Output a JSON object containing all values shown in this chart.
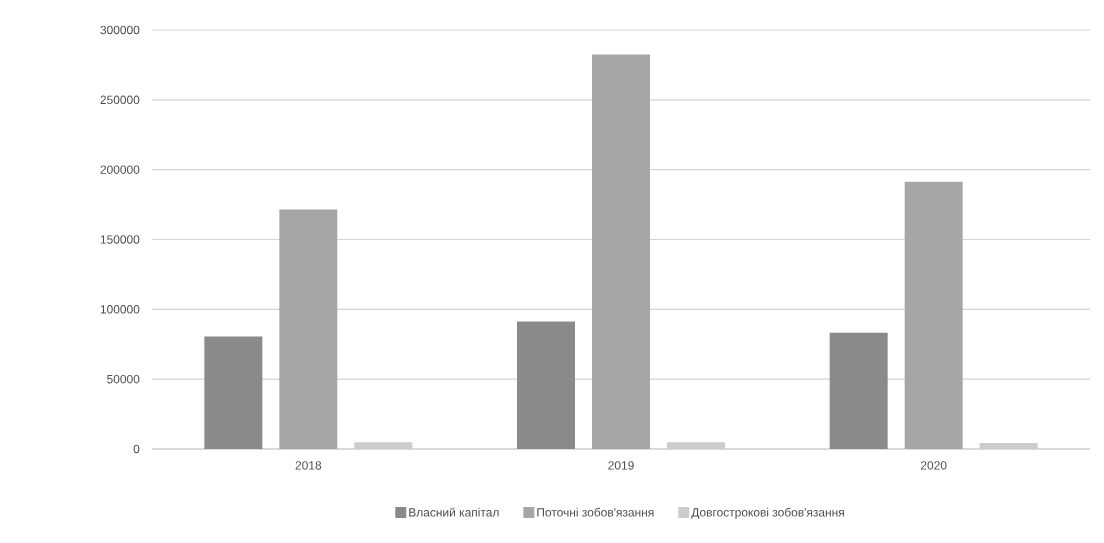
{
  "chart_data": {
    "type": "bar",
    "categories": [
      "2018",
      "2019",
      "2020"
    ],
    "series": [
      {
        "name": "Власний капітал",
        "color": "#8a8a8a",
        "values": [
          80500,
          91200,
          83300
        ]
      },
      {
        "name": "Поточні зобов'язання",
        "color": "#a6a6a6",
        "values": [
          171400,
          282400,
          191400
        ]
      },
      {
        "name": "Довгострокові зобов'язання",
        "color": "#cccccc",
        "values": [
          4900,
          4900,
          4300
        ]
      }
    ],
    "ylim": [
      0,
      300000
    ],
    "yticks": [
      0,
      50000,
      100000,
      150000,
      200000,
      250000,
      300000
    ],
    "grid": "y",
    "legend": "bottom"
  }
}
